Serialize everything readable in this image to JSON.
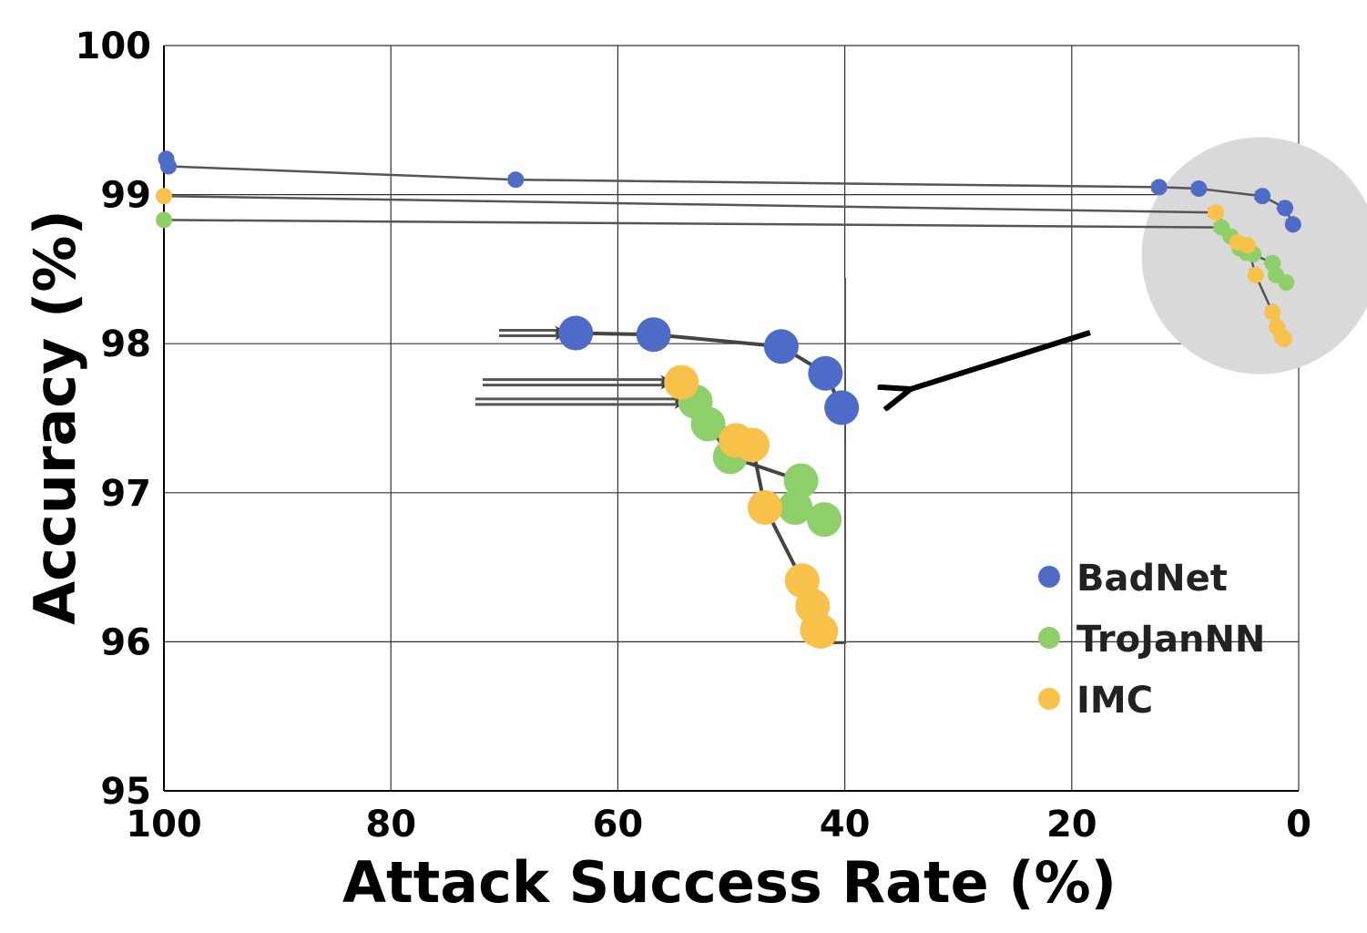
{
  "chart_data": {
    "type": "scatter",
    "xlabel": "Attack Success Rate (%)",
    "ylabel": "Accuracy (%)",
    "xlim": [
      100,
      0
    ],
    "ylim": [
      95,
      100
    ],
    "x_reversed": true,
    "xticks": [
      "100",
      "80",
      "60",
      "40",
      "20",
      "0"
    ],
    "yticks": [
      "95",
      "96",
      "97",
      "98",
      "99",
      "100"
    ],
    "grid": true,
    "legend_position": "bottom-right",
    "series": [
      {
        "name": "BadNet",
        "color": "#4f6bc8",
        "points": [
          [
            99.8,
            99.24
          ],
          [
            99.6,
            99.19
          ],
          [
            69.0,
            99.1
          ],
          [
            12.3,
            99.05
          ],
          [
            8.8,
            99.04
          ],
          [
            3.2,
            98.99
          ],
          [
            1.2,
            98.91
          ],
          [
            0.5,
            98.8
          ]
        ]
      },
      {
        "name": "TroJanNN",
        "color": "#8fcf6a",
        "points": [
          [
            100.0,
            98.83
          ],
          [
            6.8,
            98.78
          ],
          [
            6.0,
            98.72
          ],
          [
            5.2,
            98.64
          ],
          [
            4.6,
            98.61
          ],
          [
            4.0,
            98.6
          ],
          [
            2.3,
            98.54
          ],
          [
            2.0,
            98.46
          ],
          [
            1.1,
            98.41
          ]
        ]
      },
      {
        "name": "IMC",
        "color": "#f8c14a",
        "points": [
          [
            100.0,
            98.99
          ],
          [
            7.3,
            98.88
          ],
          [
            5.4,
            98.68
          ],
          [
            4.5,
            98.66
          ],
          [
            3.8,
            98.46
          ],
          [
            2.3,
            98.21
          ],
          [
            1.9,
            98.11
          ],
          [
            1.5,
            98.05
          ],
          [
            1.3,
            98.03
          ]
        ]
      }
    ],
    "inset": {
      "description_visible": false,
      "xlim": [
        72.5,
        40.5
      ],
      "ylim": [
        96.0,
        98.45
      ],
      "series": [
        {
          "name": "BadNet",
          "points": [
            [
              63.7,
              98.08
            ],
            [
              57.0,
              98.07
            ],
            [
              46.0,
              97.99
            ],
            [
              42.2,
              97.81
            ],
            [
              40.8,
              97.58
            ]
          ]
        },
        {
          "name": "TroJanNN",
          "points": [
            [
              53.4,
              97.62
            ],
            [
              52.3,
              97.47
            ],
            [
              50.4,
              97.25
            ],
            [
              44.3,
              97.09
            ],
            [
              44.8,
              96.91
            ],
            [
              42.3,
              96.83
            ]
          ]
        },
        {
          "name": "IMC",
          "points": [
            [
              54.6,
              97.75
            ],
            [
              49.9,
              97.36
            ],
            [
              48.5,
              97.33
            ],
            [
              47.4,
              96.91
            ],
            [
              44.2,
              96.42
            ],
            [
              43.3,
              96.25
            ],
            [
              42.9,
              96.09
            ],
            [
              42.6,
              96.08
            ]
          ]
        }
      ]
    }
  }
}
